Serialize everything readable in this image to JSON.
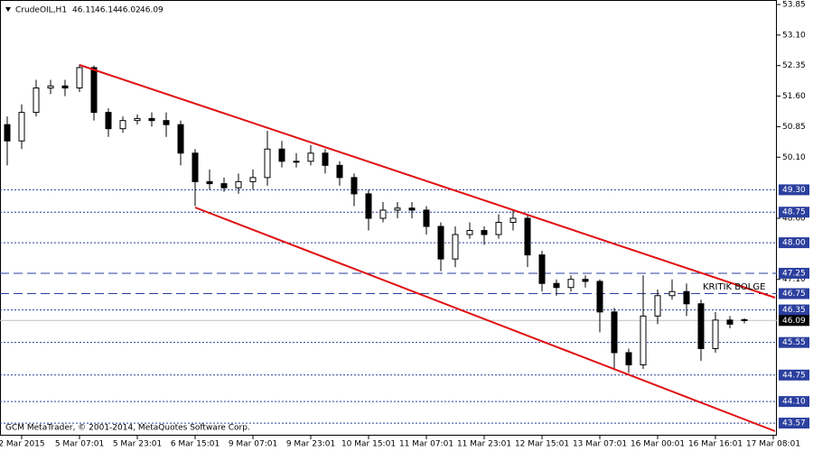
{
  "chart_data": {
    "type": "candlestick",
    "header": {
      "symbol": "CrudeOIL,H1",
      "quote": [
        "46.11",
        "46.14",
        "46.02",
        "46.09"
      ]
    },
    "annotation": "KRITIK BOLGE",
    "footer": "GCM MetaTrader, © 2001-2014, MetaQuotes Software Corp.",
    "categories": [
      null,
      "2 Mar 2015",
      null,
      null,
      null,
      "5 Mar 07:01",
      null,
      null,
      null,
      "5 Mar 23:01",
      null,
      null,
      null,
      "6 Mar 15:01",
      null,
      null,
      null,
      "9 Mar 07:01",
      null,
      null,
      null,
      "9 Mar 23:01",
      null,
      null,
      null,
      "10 Mar 15:01",
      null,
      null,
      null,
      "11 Mar 07:01",
      null,
      null,
      null,
      "11 Mar 23:01",
      null,
      null,
      null,
      "12 Mar 15:01",
      null,
      null,
      null,
      "13 Mar 07:01",
      null,
      null,
      null,
      "16 Mar 00:01",
      null,
      null,
      null,
      "16 Mar 16:01",
      null,
      null,
      null,
      "17 Mar 08:01"
    ],
    "open": [
      50.9,
      50.5,
      51.2,
      51.8,
      51.85,
      51.8,
      52.3,
      51.2,
      50.8,
      51.0,
      51.05,
      51.0,
      50.9,
      50.2,
      49.5,
      49.45,
      49.35,
      49.5,
      49.6,
      50.3,
      50.0,
      50.0,
      50.2,
      49.9,
      49.6,
      49.2,
      48.6,
      48.8,
      48.85,
      48.8,
      48.4,
      47.6,
      48.2,
      48.3,
      48.2,
      48.5,
      48.6,
      47.7,
      47.0,
      46.9,
      47.1,
      47.05,
      46.3,
      45.3,
      45.0,
      46.2,
      46.7,
      46.8,
      46.5,
      45.4,
      46.1,
      46.11,
      null,
      null
    ],
    "high": [
      51.1,
      51.4,
      52.0,
      52.0,
      52.0,
      52.38,
      52.35,
      51.3,
      51.1,
      51.15,
      51.2,
      51.2,
      51.0,
      50.3,
      49.8,
      49.6,
      49.7,
      49.8,
      50.75,
      50.5,
      50.2,
      50.4,
      50.3,
      50.0,
      49.7,
      49.3,
      49.0,
      49.0,
      49.0,
      48.9,
      48.5,
      48.4,
      48.5,
      48.4,
      48.7,
      48.8,
      48.7,
      47.8,
      47.1,
      47.2,
      47.2,
      47.1,
      46.4,
      45.4,
      47.2,
      46.85,
      47.1,
      47.0,
      46.6,
      46.3,
      46.2,
      46.14,
      null,
      null
    ],
    "low": [
      49.9,
      50.3,
      51.1,
      51.65,
      51.6,
      51.7,
      51.0,
      50.6,
      50.7,
      50.9,
      50.85,
      50.6,
      49.9,
      48.9,
      49.3,
      49.25,
      49.2,
      49.3,
      49.4,
      49.85,
      49.85,
      49.9,
      49.7,
      49.4,
      48.9,
      48.3,
      48.5,
      48.6,
      48.6,
      48.2,
      47.3,
      47.4,
      48.1,
      47.95,
      48.1,
      48.3,
      47.4,
      46.8,
      46.7,
      46.8,
      46.9,
      45.8,
      44.9,
      44.8,
      44.9,
      46.0,
      46.6,
      46.2,
      45.1,
      45.3,
      45.9,
      46.02,
      null,
      null
    ],
    "close": [
      50.5,
      51.2,
      51.8,
      51.85,
      51.8,
      52.3,
      51.2,
      50.8,
      51.0,
      51.05,
      51.0,
      50.9,
      50.2,
      49.5,
      49.45,
      49.35,
      49.5,
      49.6,
      50.3,
      50.0,
      50.0,
      50.2,
      49.9,
      49.6,
      49.2,
      48.6,
      48.8,
      48.85,
      48.8,
      48.4,
      47.6,
      48.2,
      48.3,
      48.2,
      48.5,
      48.6,
      47.7,
      47.0,
      46.9,
      47.1,
      47.05,
      46.3,
      45.3,
      45.0,
      46.2,
      46.7,
      46.8,
      46.5,
      45.4,
      46.1,
      46.0,
      46.09,
      null,
      null
    ],
    "ylim": [
      43.35,
      53.85
    ],
    "yticks": [
      53.85,
      {
        "value": 53.1,
        "label": "53.10"
      },
      52.35,
      {
        "value": 51.6,
        "label": "51.60"
      },
      50.85,
      {
        "value": 50.1,
        "label": "50.10"
      },
      {
        "value": 48.6,
        "label": "48.60"
      },
      {
        "value": 47.1,
        "label": "47.10"
      }
    ],
    "levels": [
      {
        "value": 49.3,
        "label": "49.30",
        "style": "dotted"
      },
      {
        "value": 48.75,
        "label": "48.75",
        "style": "dotted"
      },
      {
        "value": 48.0,
        "label": "48.00",
        "style": "dotted"
      },
      {
        "value": 47.25,
        "label": "47.25",
        "style": "dashed"
      },
      {
        "value": 46.75,
        "label": "46.75",
        "style": "dashed"
      },
      {
        "value": 46.35,
        "label": "46.35",
        "style": "dotted"
      },
      {
        "value": 45.55,
        "label": "45.55",
        "style": "dotted"
      },
      {
        "value": 44.75,
        "label": "44.75",
        "style": "dotted"
      },
      {
        "value": 44.1,
        "label": "44.10",
        "style": "dotted"
      },
      {
        "value": 43.57,
        "label": "43.57",
        "style": "dotted"
      }
    ],
    "level_color": "#2b3f9e",
    "current_price": 46.09,
    "candle_color": "#000000",
    "channel_color": "#e01010"
  }
}
